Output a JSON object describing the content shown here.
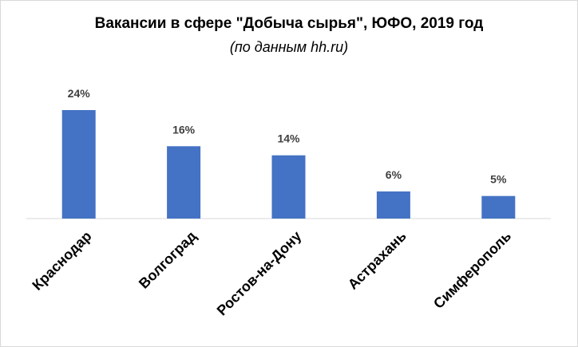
{
  "chart_data": {
    "type": "bar",
    "title": "Вакансии в сфере \"Добыча сырья\", ЮФО, 2019 год",
    "subtitle": "(по данным hh.ru)",
    "categories": [
      "Краснодар",
      "Волгоград",
      "Ростов-на-Дону",
      "Астрахань",
      "Симферополь"
    ],
    "values": [
      24,
      16,
      14,
      6,
      5
    ],
    "value_labels": [
      "24%",
      "16%",
      "14%",
      "6%",
      "5%"
    ],
    "unit": "%",
    "ylim": [
      0,
      24
    ],
    "grid": false,
    "legend": "none",
    "colors": {
      "bar": "#4472C4",
      "axis": "#d9d9d9",
      "label": "#404040"
    }
  }
}
